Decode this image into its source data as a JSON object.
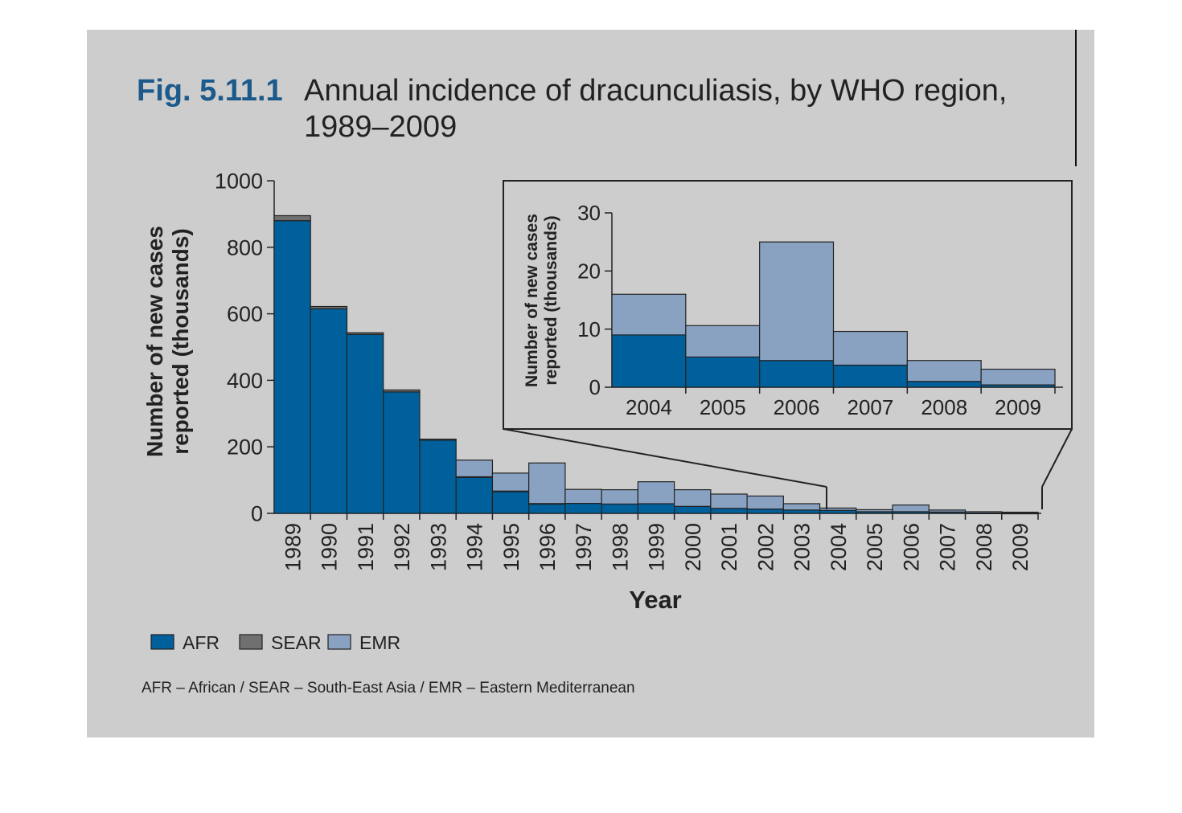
{
  "figure": {
    "label": "Fig. 5.11.1",
    "title_line1": "Annual incidence of dracunculiasis, by WHO region,",
    "title_line2": "1989–2009",
    "label_color": "#1c5a8c"
  },
  "colors": {
    "AFR": "#00609c",
    "SEAR": "#707070",
    "EMR": "#8aa2c2",
    "panel": "#cdcdcd"
  },
  "legend": [
    {
      "key": "AFR",
      "label": "AFR"
    },
    {
      "key": "SEAR",
      "label": "SEAR"
    },
    {
      "key": "EMR",
      "label": "EMR"
    }
  ],
  "footnote": "AFR – African / SEAR – South-East Asia / EMR – Eastern Mediterranean",
  "chart_data": [
    {
      "type": "bar",
      "stacked": true,
      "ylabel_line1": "Number of new cases",
      "ylabel_line2": "reported (thousands)",
      "xlabel": "Year",
      "ylim": [
        0,
        1000
      ],
      "yticks": [
        0,
        200,
        400,
        600,
        800,
        1000
      ],
      "categories": [
        "1989",
        "1990",
        "1991",
        "1992",
        "1993",
        "1994",
        "1995",
        "1996",
        "1997",
        "1998",
        "1999",
        "2000",
        "2001",
        "2002",
        "2003",
        "2004",
        "2005",
        "2006",
        "2007",
        "2008",
        "2009"
      ],
      "series": [
        {
          "name": "AFR",
          "values": [
            880,
            615,
            538,
            365,
            220,
            108,
            66,
            29,
            30,
            28,
            29,
            21,
            15,
            13,
            10,
            9,
            5,
            5,
            4,
            1,
            0.5
          ]
        },
        {
          "name": "SEAR",
          "values": [
            15,
            7,
            5,
            6,
            3,
            2,
            1,
            0.5,
            0,
            0,
            0,
            0,
            0,
            0,
            0,
            0,
            0,
            0,
            0,
            0,
            0
          ]
        },
        {
          "name": "EMR",
          "values": [
            0,
            0,
            0,
            0,
            0,
            50,
            54,
            122,
            42,
            43,
            66,
            50,
            43,
            39,
            19,
            7,
            6,
            20,
            6,
            4,
            3
          ]
        }
      ]
    },
    {
      "type": "bar",
      "stacked": true,
      "inset": true,
      "ylabel_line1": "Number of new cases",
      "ylabel_line2": "reported (thousands)",
      "ylim": [
        0,
        30
      ],
      "yticks": [
        0,
        10,
        20,
        30
      ],
      "categories": [
        "2004",
        "2005",
        "2006",
        "2007",
        "2008",
        "2009"
      ],
      "series": [
        {
          "name": "AFR",
          "values": [
            9,
            5.2,
            4.6,
            3.8,
            1,
            0.4
          ]
        },
        {
          "name": "SEAR",
          "values": [
            0,
            0,
            0,
            0,
            0,
            0
          ]
        },
        {
          "name": "EMR",
          "values": [
            7,
            5.4,
            20.4,
            5.8,
            3.6,
            2.7
          ]
        }
      ]
    }
  ]
}
